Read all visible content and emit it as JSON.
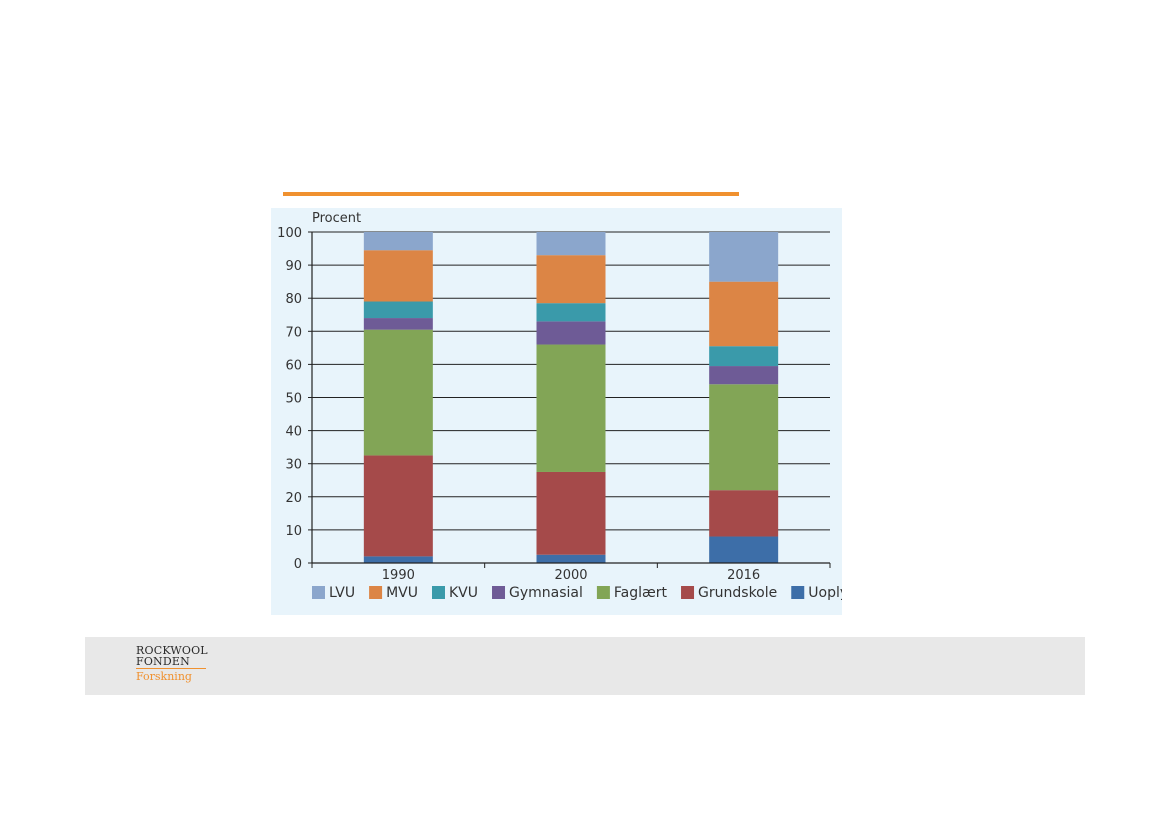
{
  "colors": {
    "accent_orange": "#f0912f",
    "panel_background": "#e8f4fb",
    "footer_background": "#e8e8e8"
  },
  "logo": {
    "line1": "ROCKWOOL",
    "line2": "FONDEN",
    "line3": "Forskning"
  },
  "chart_data": {
    "type": "bar",
    "stacked": true,
    "title": "",
    "ylabel": "Procent",
    "xlabel": "",
    "ylim": [
      0,
      100
    ],
    "yticks": [
      0,
      10,
      20,
      30,
      40,
      50,
      60,
      70,
      80,
      90,
      100
    ],
    "grid": true,
    "legend_position": "bottom",
    "categories": [
      "1990",
      "2000",
      "2016"
    ],
    "series": [
      {
        "name": "Uoplyst",
        "color": "#3d6ea8",
        "values": [
          2,
          2.5,
          8
        ]
      },
      {
        "name": "Grundskole",
        "color": "#a54a4a",
        "values": [
          30.5,
          25,
          14
        ]
      },
      {
        "name": "Faglært",
        "color": "#82a556",
        "values": [
          38,
          38.5,
          32
        ]
      },
      {
        "name": "Gymnasial",
        "color": "#6e5b96",
        "values": [
          3.5,
          7,
          5.5
        ]
      },
      {
        "name": "KVU",
        "color": "#3a9aaa",
        "values": [
          5,
          5.5,
          6
        ]
      },
      {
        "name": "MVU",
        "color": "#dc8545",
        "values": [
          15.5,
          14.5,
          19.5
        ]
      },
      {
        "name": "LVU",
        "color": "#8ba6cc",
        "values": [
          5.5,
          7,
          15
        ]
      }
    ]
  }
}
